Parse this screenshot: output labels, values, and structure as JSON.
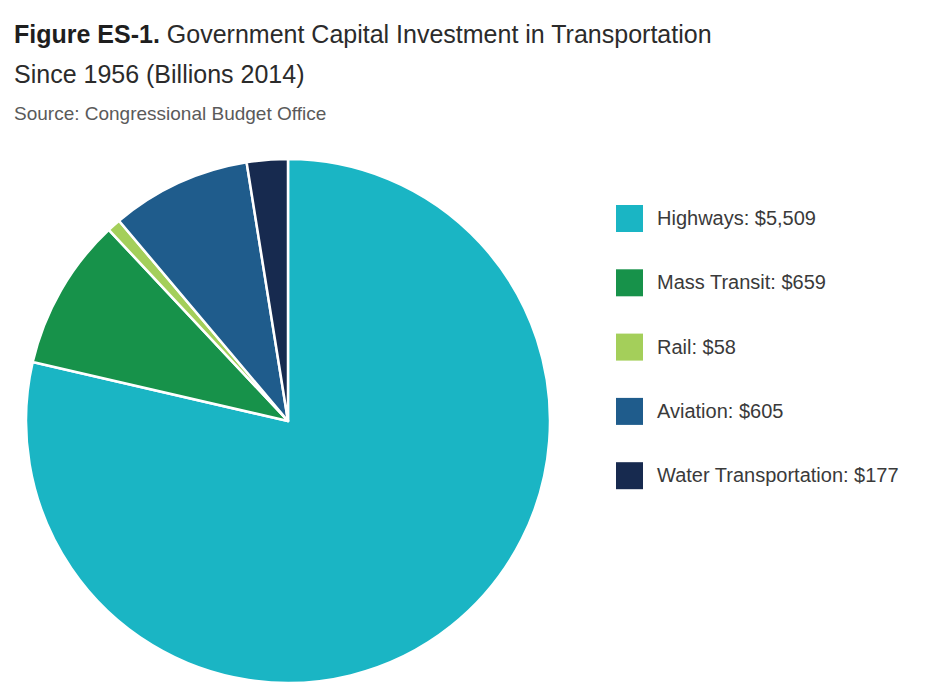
{
  "chart_data": {
    "type": "pie",
    "title": "Figure ES-1. Government Capital Investment in Transportation Since 1956 (Billions 2014)",
    "subtitle": "Source: Congressional Budget Office",
    "categories": [
      "Highways: $5,509",
      "Mass Transit: $659",
      "Rail: $58",
      "Aviation: $605",
      "Water Transportation: $177"
    ],
    "values": [
      5509,
      659,
      58,
      605,
      177
    ],
    "colors": [
      "#1ab5c4",
      "#17924a",
      "#a4cf5a",
      "#1f5c8c",
      "#172a4f"
    ],
    "legend": "right"
  }
}
